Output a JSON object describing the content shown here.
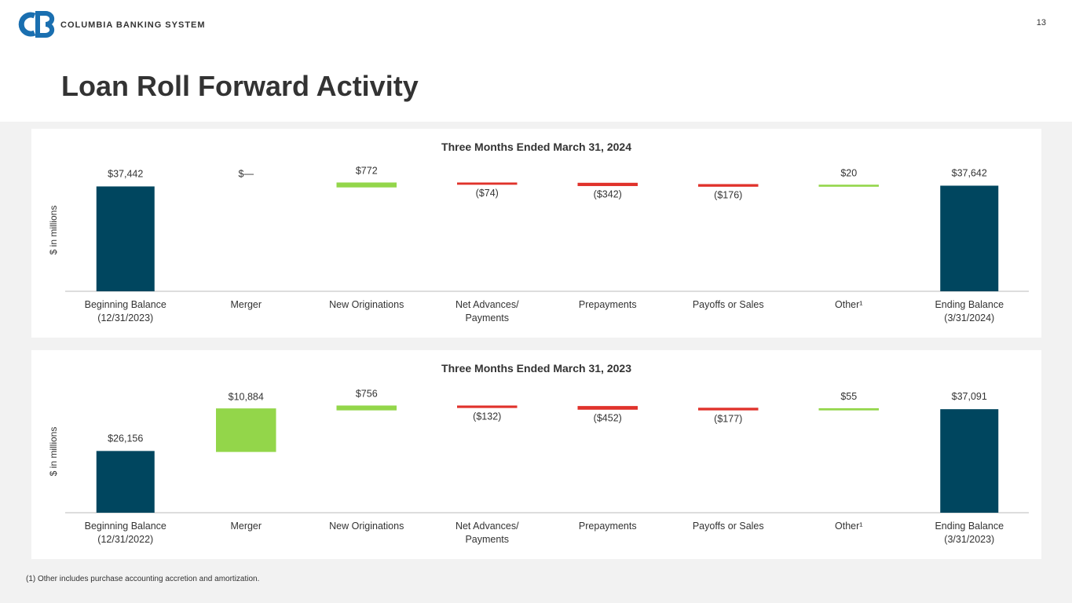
{
  "header": {
    "logo_text": "COLUMBIA BANKING SYSTEM",
    "page_number": "13",
    "title": "Loan Roll Forward Activity"
  },
  "chart_data": [
    {
      "type": "waterfall",
      "title": "Three Months Ended March 31, 2024",
      "y_label": "$ in millions",
      "categories": [
        "Beginning Balance (12/31/2023)",
        "Merger",
        "New Originations",
        "Net Advances/ Payments",
        "Prepayments",
        "Payoffs or Sales",
        "Other¹",
        "Ending Balance (3/31/2024)"
      ],
      "values": [
        37442,
        0,
        772,
        -74,
        -342,
        -176,
        20,
        37642
      ],
      "value_labels": [
        "$37,442",
        "$—",
        "$772",
        "($74)",
        "($342)",
        "($176)",
        "$20",
        "$37,642"
      ],
      "ylim": [
        10000,
        40000
      ],
      "total_color": "#00465f",
      "increase_color": "#93d64a",
      "decrease_color": "#e0322b"
    },
    {
      "type": "waterfall",
      "title": "Three Months Ended March 31, 2023",
      "y_label": "$ in millions",
      "categories": [
        "Beginning Balance (12/31/2022)",
        "Merger",
        "New Originations",
        "Net Advances/ Payments",
        "Prepayments",
        "Payoffs or Sales",
        "Other¹",
        "Ending Balance (3/31/2023)"
      ],
      "values": [
        26156,
        10884,
        756,
        -132,
        -452,
        -177,
        55,
        37091
      ],
      "value_labels": [
        "$26,156",
        "$10,884",
        "$756",
        "($132)",
        "($452)",
        "($177)",
        "$55",
        "$37,091"
      ],
      "ylim": [
        10000,
        40000
      ],
      "total_color": "#00465f",
      "increase_color": "#93d64a",
      "decrease_color": "#e0322b"
    }
  ],
  "footnote": "(1)  Other includes purchase accounting accretion and amortization."
}
